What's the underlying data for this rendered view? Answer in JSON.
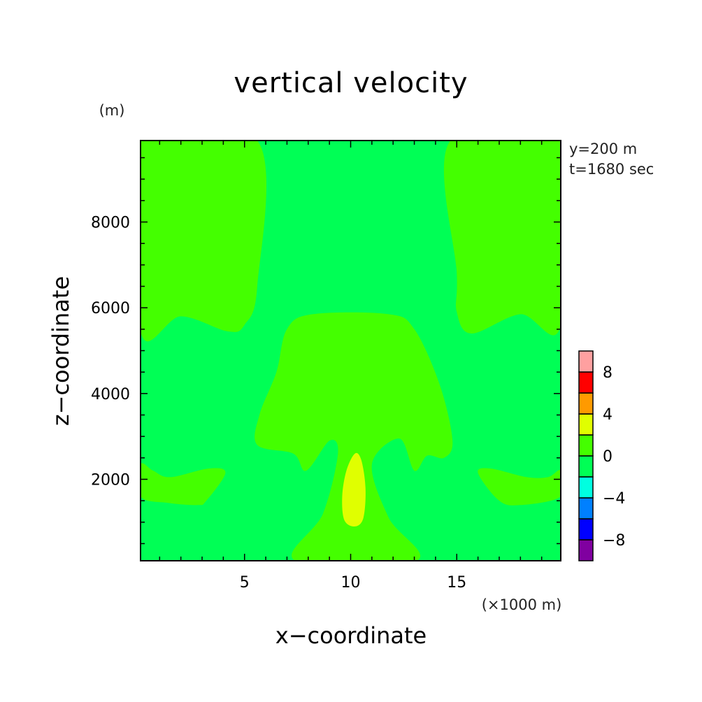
{
  "chart_data": {
    "type": "heatmap",
    "title": "vertical velocity",
    "xlabel": "x−coordinate",
    "ylabel": "z−coordinate",
    "x_unit": "(×1000 m)",
    "y_unit": "(m)",
    "annotations": [
      "y=200 m",
      "t=1680 sec"
    ],
    "xlim": [
      0.1,
      19.9
    ],
    "ylim": [
      100,
      9900
    ],
    "x_ticks": [
      5,
      10,
      15
    ],
    "y_ticks": [
      2000,
      4000,
      6000,
      8000
    ],
    "colorbar": {
      "ticks": [
        8,
        4,
        0,
        -4,
        -8
      ],
      "levels": [
        -10,
        -8,
        -6,
        -4,
        -2,
        0,
        2,
        4,
        6,
        8,
        10
      ],
      "colors": [
        "#8000a0",
        "#0000ff",
        "#0080ff",
        "#00ffe0",
        "#00ff55",
        "#44ff00",
        "#e0ff00",
        "#ff9a00",
        "#ff0000",
        "#ffa0a0"
      ]
    },
    "regions": [
      {
        "band": "0 to 2",
        "color": "#44ff00",
        "description": "upper-left updraft column",
        "points": [
          [
            0.1,
            9900
          ],
          [
            5.6,
            9900
          ],
          [
            5.6,
            6500
          ],
          [
            5.0,
            5600
          ],
          [
            4.2,
            5450
          ],
          [
            2.0,
            5800
          ],
          [
            0.1,
            5450
          ]
        ]
      },
      {
        "band": "0 to 2",
        "color": "#44ff00",
        "description": "upper-right updraft column",
        "points": [
          [
            14.7,
            9900
          ],
          [
            19.9,
            9900
          ],
          [
            19.9,
            5600
          ],
          [
            18.0,
            5850
          ],
          [
            15.7,
            5400
          ],
          [
            15.0,
            5900
          ],
          [
            15.0,
            6800
          ]
        ]
      },
      {
        "band": "0 to 2",
        "color": "#44ff00",
        "description": "central mushroom cloud",
        "points": [
          [
            7.0,
            5500
          ],
          [
            8.2,
            5850
          ],
          [
            11.8,
            5850
          ],
          [
            13.0,
            5500
          ],
          [
            14.2,
            4200
          ],
          [
            14.8,
            2900
          ],
          [
            14.4,
            2500
          ],
          [
            13.6,
            2550
          ],
          [
            13.0,
            2200
          ],
          [
            12.3,
            2950
          ],
          [
            11.0,
            2350
          ],
          [
            11.8,
            1100
          ],
          [
            13.1,
            100
          ],
          [
            7.4,
            100
          ],
          [
            8.7,
            1200
          ],
          [
            9.4,
            2600
          ],
          [
            9.0,
            2900
          ],
          [
            7.9,
            2200
          ],
          [
            7.3,
            2600
          ],
          [
            5.6,
            2800
          ],
          [
            5.7,
            3500
          ],
          [
            6.5,
            4500
          ]
        ]
      },
      {
        "band": "0 to 2",
        "color": "#44ff00",
        "description": "lower-left arm",
        "points": [
          [
            0.1,
            2350
          ],
          [
            0.7,
            2200
          ],
          [
            1.5,
            2050
          ],
          [
            3.3,
            2250
          ],
          [
            4.1,
            2150
          ],
          [
            3.2,
            1500
          ],
          [
            2.8,
            1400
          ],
          [
            1.4,
            1450
          ],
          [
            0.1,
            1600
          ]
        ]
      },
      {
        "band": "0 to 2",
        "color": "#44ff00",
        "description": "lower-right arm",
        "points": [
          [
            19.9,
            2200
          ],
          [
            19.3,
            2050
          ],
          [
            18.3,
            2050
          ],
          [
            16.6,
            2250
          ],
          [
            16.0,
            2150
          ],
          [
            17.0,
            1500
          ],
          [
            18.0,
            1400
          ],
          [
            19.9,
            1600
          ]
        ]
      },
      {
        "band": "2 to 6",
        "color": "#e0ff00",
        "description": "updraft core",
        "points": [
          [
            10.2,
            2600
          ],
          [
            10.5,
            2450
          ],
          [
            10.7,
            1800
          ],
          [
            10.6,
            1100
          ],
          [
            10.2,
            900
          ],
          [
            9.7,
            1050
          ],
          [
            9.6,
            1600
          ],
          [
            9.8,
            2200
          ]
        ]
      }
    ]
  }
}
